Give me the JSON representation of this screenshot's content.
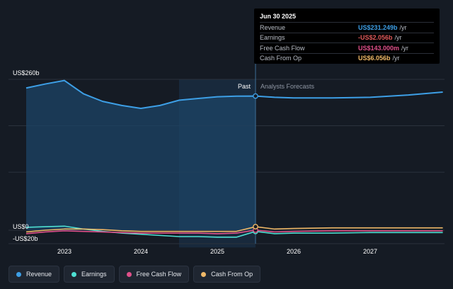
{
  "chart_data": {
    "type": "line",
    "ylim": [
      -20,
      260
    ],
    "y_tick_labels": [
      "US$260b",
      "US$0",
      "-US$20b"
    ],
    "x_tick_labels": [
      "2023",
      "2024",
      "2025",
      "2026",
      "2027"
    ],
    "past_label": "Past",
    "forecast_label": "Analysts Forecasts",
    "series": [
      {
        "name": "Revenue",
        "color": "#3d9fe6",
        "points": [
          [
            2022.5,
            245
          ],
          [
            2022.75,
            252
          ],
          [
            2023.0,
            258
          ],
          [
            2023.25,
            235
          ],
          [
            2023.5,
            222
          ],
          [
            2023.75,
            215
          ],
          [
            2024.0,
            210
          ],
          [
            2024.25,
            215
          ],
          [
            2024.5,
            224
          ],
          [
            2024.75,
            227
          ],
          [
            2025.0,
            230
          ],
          [
            2025.25,
            231
          ],
          [
            2025.5,
            231.2
          ],
          [
            2025.75,
            229
          ],
          [
            2026.0,
            228
          ],
          [
            2026.5,
            228
          ],
          [
            2027.0,
            229
          ],
          [
            2027.5,
            233
          ],
          [
            2027.95,
            238
          ]
        ]
      },
      {
        "name": "Earnings",
        "color": "#4ee0d3",
        "points": [
          [
            2022.5,
            5
          ],
          [
            2022.75,
            6
          ],
          [
            2023.0,
            7
          ],
          [
            2023.25,
            2
          ],
          [
            2023.5,
            -2
          ],
          [
            2023.75,
            -5
          ],
          [
            2024.0,
            -7
          ],
          [
            2024.25,
            -9
          ],
          [
            2024.5,
            -11
          ],
          [
            2024.75,
            -11
          ],
          [
            2025.0,
            -12
          ],
          [
            2025.25,
            -12
          ],
          [
            2025.5,
            -2.056
          ],
          [
            2025.75,
            -6
          ],
          [
            2026.0,
            -5
          ],
          [
            2026.5,
            -5
          ],
          [
            2027.0,
            -4
          ],
          [
            2027.5,
            -4
          ],
          [
            2027.95,
            -4
          ]
        ]
      },
      {
        "name": "Free Cash Flow",
        "color": "#e0508a",
        "points": [
          [
            2022.5,
            -6
          ],
          [
            2022.75,
            -3
          ],
          [
            2023.0,
            -1
          ],
          [
            2023.25,
            -2
          ],
          [
            2023.5,
            -3
          ],
          [
            2023.75,
            -4
          ],
          [
            2024.0,
            -5
          ],
          [
            2024.25,
            -5
          ],
          [
            2024.5,
            -5
          ],
          [
            2024.75,
            -5
          ],
          [
            2025.0,
            -6
          ],
          [
            2025.25,
            -5
          ],
          [
            2025.5,
            0.143
          ],
          [
            2025.75,
            -3
          ],
          [
            2026.0,
            -2
          ],
          [
            2026.5,
            -1
          ],
          [
            2027.0,
            -1
          ],
          [
            2027.5,
            -1
          ],
          [
            2027.95,
            -1
          ]
        ]
      },
      {
        "name": "Cash From Op",
        "color": "#f0b968",
        "points": [
          [
            2022.5,
            -3
          ],
          [
            2022.75,
            0
          ],
          [
            2023.0,
            2
          ],
          [
            2023.25,
            2
          ],
          [
            2023.5,
            1
          ],
          [
            2023.75,
            -1
          ],
          [
            2024.0,
            -2
          ],
          [
            2024.25,
            -2
          ],
          [
            2024.5,
            -2
          ],
          [
            2024.75,
            -2
          ],
          [
            2025.0,
            -2
          ],
          [
            2025.25,
            -2
          ],
          [
            2025.5,
            6.056
          ],
          [
            2025.75,
            2
          ],
          [
            2026.0,
            3
          ],
          [
            2026.5,
            4
          ],
          [
            2027.0,
            4
          ],
          [
            2027.5,
            4
          ],
          [
            2027.95,
            4
          ]
        ]
      }
    ]
  },
  "tooltip": {
    "title": "Jun 30 2025",
    "rows": [
      {
        "label": "Revenue",
        "value": "US$231.249b",
        "unit": "/yr",
        "color": "#3d9fe6"
      },
      {
        "label": "Earnings",
        "value": "-US$2.056b",
        "unit": "/yr",
        "color": "#e05a5a"
      },
      {
        "label": "Free Cash Flow",
        "value": "US$143.000m",
        "unit": "/yr",
        "color": "#e0508a"
      },
      {
        "label": "Cash From Op",
        "value": "US$6.056b",
        "unit": "/yr",
        "color": "#f0b968"
      }
    ]
  },
  "legend": [
    {
      "label": "Revenue",
      "color": "#3d9fe6"
    },
    {
      "label": "Earnings",
      "color": "#4ee0d3"
    },
    {
      "label": "Free Cash Flow",
      "color": "#e0508a"
    },
    {
      "label": "Cash From Op",
      "color": "#f0b968"
    }
  ]
}
